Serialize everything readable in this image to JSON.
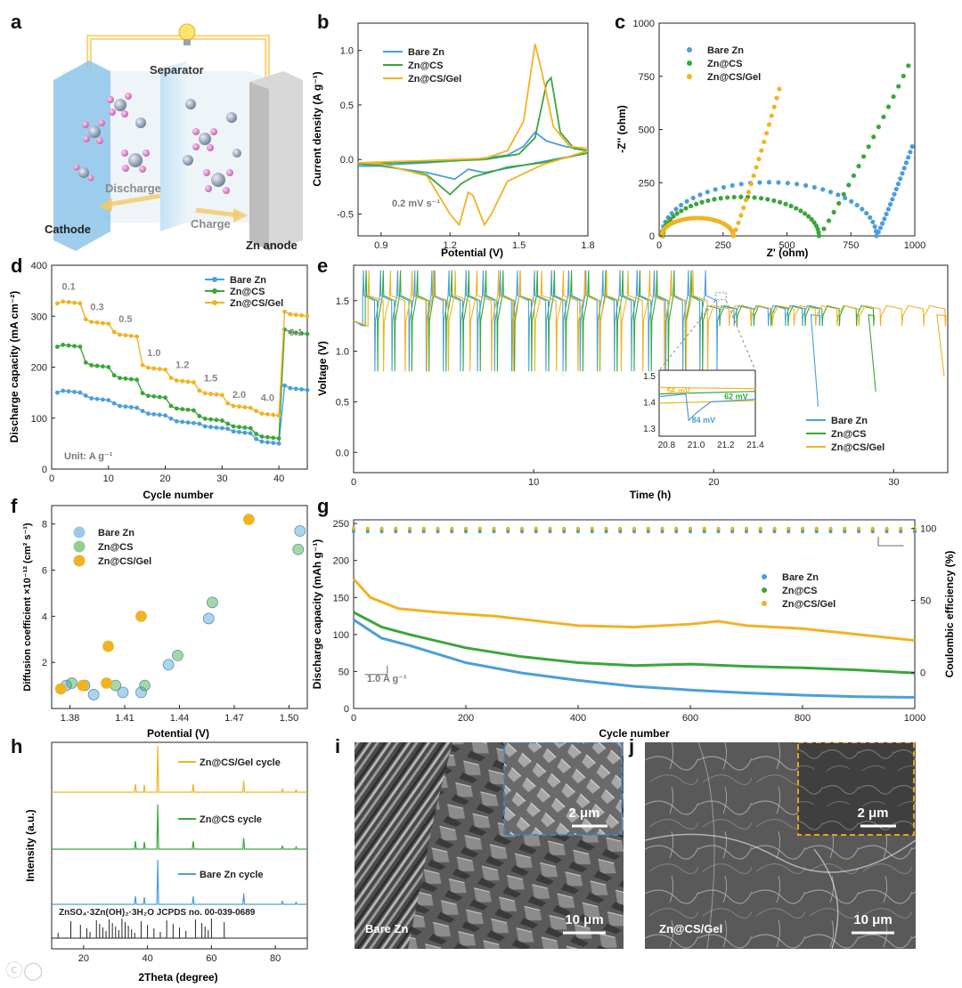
{
  "labels": {
    "a": "a",
    "b": "b",
    "c": "c",
    "d": "d",
    "e": "e",
    "f": "f",
    "g": "g",
    "h": "h",
    "i": "i",
    "j": "j"
  },
  "colors": {
    "bare": "#4a9fd8",
    "cs": "#3aa63a",
    "gel": "#f0b323"
  },
  "panel_a": {
    "separator": "Separator",
    "discharge": "Discharge",
    "charge": "Charge",
    "cathode": "Cathode",
    "anode": "Zn anode"
  },
  "panel_b": {
    "ylabel": "Current density (A g⁻¹)",
    "xlabel": "Potential (V)",
    "note": "0.2 mV s⁻¹",
    "legend": [
      "Bare Zn",
      "Zn@CS",
      "Zn@CS/Gel"
    ],
    "xticks": [
      "0.9",
      "1.2",
      "1.5",
      "1.8"
    ],
    "yticks": [
      "-0.5",
      "0.0",
      "0.5",
      "1.0"
    ]
  },
  "panel_c": {
    "ylabel": "-Z'' (ohm)",
    "xlabel": "Z' (ohm)",
    "legend": [
      "Bare Zn",
      "Zn@CS",
      "Zn@CS/Gel"
    ],
    "xticks": [
      "0",
      "250",
      "500",
      "750",
      "1000"
    ],
    "yticks": [
      "0",
      "250",
      "500",
      "750",
      "1000"
    ]
  },
  "panel_d": {
    "ylabel": "Discharge capacity (mA cm⁻²)",
    "xlabel": "Cycle number",
    "unit": "Unit: A g⁻¹",
    "legend": [
      "Bare Zn",
      "Zn@CS",
      "Zn@CS/Gel"
    ],
    "rates": [
      "0.1",
      "0.3",
      "0.5",
      "1.0",
      "1.2",
      "1.5",
      "2.0",
      "4.0",
      "0.1"
    ],
    "xticks": [
      "0",
      "10",
      "20",
      "30",
      "40"
    ],
    "yticks": [
      "0",
      "100",
      "200",
      "300",
      "400"
    ]
  },
  "panel_e": {
    "ylabel": "Voltage (V)",
    "xlabel": "Time (h)",
    "legend": [
      "Bare Zn",
      "Zn@CS",
      "Zn@CS/Gel"
    ],
    "xticks": [
      "0",
      "10",
      "20",
      "30"
    ],
    "yticks": [
      "0.0",
      "0.5",
      "1.0",
      "1.5"
    ],
    "inset_xticks": [
      "20.8",
      "21.0",
      "21.2",
      "21.4"
    ],
    "inset_yticks": [
      "1.3",
      "1.4",
      "1.5"
    ],
    "inset_notes": [
      "56 mV",
      "62 mV",
      "84 mV"
    ]
  },
  "panel_f": {
    "ylabel": "Diffusion coefficient ×10⁻¹² (cm² s⁻¹)",
    "xlabel": "Potential (V)",
    "legend": [
      "Bare Zn",
      "Zn@CS",
      "Zn@CS/Gel"
    ],
    "xticks": [
      "1.38",
      "1.41",
      "1.44",
      "1.47",
      "1.50"
    ],
    "yticks": [
      "2",
      "4",
      "6",
      "8"
    ]
  },
  "panel_g": {
    "ylabel": "Discharge capacity (mAh g⁻¹)",
    "ylabel2": "Coulombic efficiency (%)",
    "xlabel": "Cycle number",
    "note": "1.0 A g⁻¹",
    "legend": [
      "Bare Zn",
      "Zn@CS",
      "Zn@CS/Gel"
    ],
    "xticks": [
      "0",
      "200",
      "400",
      "600",
      "800",
      "1000"
    ],
    "yticks": [
      "0",
      "50",
      "100",
      "150",
      "200",
      "250"
    ],
    "y2ticks": [
      "0",
      "50",
      "100"
    ]
  },
  "panel_h": {
    "ylabel": "Intensity (a.u.)",
    "xlabel": "2Theta (degree)",
    "traces": [
      "Zn@CS/Gel cycle",
      "Zn@CS cycle",
      "Bare Zn cycle"
    ],
    "reference": "ZnSO₄·3Zn(OH)₂·3H₂O JCPDS no. 00-039-0689",
    "xticks": [
      "20",
      "40",
      "60",
      "80"
    ]
  },
  "panel_i": {
    "label": "Bare Zn",
    "scale": "10 μm",
    "inset_scale": "2 μm"
  },
  "panel_j": {
    "label": "Zn@CS/Gel",
    "scale": "10 μm",
    "inset_scale": "2 μm"
  },
  "chart_data": [
    {
      "panel": "b",
      "type": "line",
      "xlim": [
        0.8,
        1.8
      ],
      "ylim": [
        -0.7,
        1.25
      ],
      "series": [
        {
          "name": "Bare Zn",
          "forward": [
            [
              0.8,
              -0.06
            ],
            [
              1.1,
              -0.03
            ],
            [
              1.3,
              0.0
            ],
            [
              1.45,
              0.04
            ],
            [
              1.52,
              0.12
            ],
            [
              1.57,
              0.25
            ],
            [
              1.62,
              0.17
            ],
            [
              1.7,
              0.12
            ],
            [
              1.8,
              0.08
            ]
          ],
          "reverse": [
            [
              1.8,
              0.06
            ],
            [
              1.6,
              -0.02
            ],
            [
              1.45,
              -0.08
            ],
            [
              1.35,
              -0.12
            ],
            [
              1.28,
              -0.09
            ],
            [
              1.22,
              -0.18
            ],
            [
              1.1,
              -0.12
            ],
            [
              0.9,
              -0.06
            ],
            [
              0.8,
              -0.06
            ]
          ]
        },
        {
          "name": "Zn@CS",
          "forward": [
            [
              0.8,
              -0.04
            ],
            [
              1.1,
              -0.02
            ],
            [
              1.35,
              0.0
            ],
            [
              1.5,
              0.05
            ],
            [
              1.57,
              0.2
            ],
            [
              1.62,
              0.7
            ],
            [
              1.64,
              0.75
            ],
            [
              1.68,
              0.25
            ],
            [
              1.74,
              0.1
            ],
            [
              1.8,
              0.08
            ]
          ],
          "reverse": [
            [
              1.8,
              0.06
            ],
            [
              1.6,
              -0.03
            ],
            [
              1.45,
              -0.07
            ],
            [
              1.37,
              -0.12
            ],
            [
              1.3,
              -0.16
            ],
            [
              1.25,
              -0.22
            ],
            [
              1.2,
              -0.32
            ],
            [
              1.1,
              -0.14
            ],
            [
              0.9,
              -0.05
            ],
            [
              0.8,
              -0.04
            ]
          ]
        },
        {
          "name": "Zn@CS/Gel",
          "forward": [
            [
              0.8,
              -0.03
            ],
            [
              1.1,
              -0.01
            ],
            [
              1.35,
              0.01
            ],
            [
              1.45,
              0.08
            ],
            [
              1.52,
              0.35
            ],
            [
              1.57,
              1.06
            ],
            [
              1.6,
              0.8
            ],
            [
              1.65,
              0.3
            ],
            [
              1.72,
              0.12
            ],
            [
              1.8,
              0.1
            ]
          ],
          "reverse": [
            [
              1.8,
              0.08
            ],
            [
              1.6,
              -0.05
            ],
            [
              1.45,
              -0.2
            ],
            [
              1.38,
              -0.5
            ],
            [
              1.35,
              -0.6
            ],
            [
              1.3,
              -0.33
            ],
            [
              1.28,
              -0.3
            ],
            [
              1.24,
              -0.6
            ],
            [
              1.2,
              -0.5
            ],
            [
              1.1,
              -0.15
            ],
            [
              0.9,
              -0.04
            ],
            [
              0.8,
              -0.03
            ]
          ]
        }
      ]
    },
    {
      "panel": "c",
      "type": "scatter",
      "xlim": [
        0,
        1000
      ],
      "ylim": [
        0,
        1000
      ],
      "series": [
        {
          "name": "Bare Zn",
          "center": 430,
          "radius": 420,
          "end_x": 850,
          "tail_x": 990,
          "tail_y": 420
        },
        {
          "name": "Zn@CS",
          "center": 320,
          "radius": 305,
          "end_x": 630,
          "tail_x": 975,
          "tail_y": 800
        },
        {
          "name": "Zn@CS/Gel",
          "center": 150,
          "radius": 140,
          "end_x": 290,
          "tail_x": 470,
          "tail_y": 690
        }
      ]
    },
    {
      "panel": "d",
      "type": "line",
      "xlim": [
        0,
        45
      ],
      "ylim": [
        0,
        400
      ],
      "steps": {
        "cycles_per_step": 5,
        "final_step_cycles": 5
      },
      "series": [
        {
          "name": "Bare Zn",
          "levels": [
            155,
            140,
            125,
            110,
            95,
            85,
            75,
            55,
            160
          ]
        },
        {
          "name": "Zn@CS",
          "levels": [
            245,
            205,
            180,
            145,
            120,
            100,
            85,
            65,
            270
          ]
        },
        {
          "name": "Zn@CS/Gel",
          "levels": [
            330,
            290,
            265,
            200,
            175,
            150,
            125,
            110,
            305
          ]
        }
      ]
    },
    {
      "panel": "e",
      "type": "line",
      "xlim": [
        0,
        33
      ],
      "ylim": [
        -0.2,
        1.85
      ],
      "series": [
        {
          "name": "Bare Zn",
          "end_time": 25.8
        },
        {
          "name": "Zn@CS",
          "end_time": 29.0
        },
        {
          "name": "Zn@CS/Gel",
          "end_time": 32.8
        }
      ]
    },
    {
      "panel": "f",
      "type": "scatter",
      "xlim": [
        1.37,
        1.51
      ],
      "ylim": [
        0,
        8.8
      ],
      "series": [
        {
          "name": "Bare Zn",
          "points": [
            [
              1.378,
              1.0
            ],
            [
              1.393,
              0.6
            ],
            [
              1.409,
              0.7
            ],
            [
              1.419,
              0.7
            ],
            [
              1.434,
              1.9
            ],
            [
              1.456,
              3.9
            ],
            [
              1.506,
              7.7
            ]
          ]
        },
        {
          "name": "Zn@CS",
          "points": [
            [
              1.381,
              1.1
            ],
            [
              1.388,
              1.0
            ],
            [
              1.405,
              1.0
            ],
            [
              1.421,
              1.0
            ],
            [
              1.439,
              2.3
            ],
            [
              1.458,
              4.6
            ],
            [
              1.505,
              6.9
            ]
          ]
        },
        {
          "name": "Zn@CS/Gel",
          "points": [
            [
              1.375,
              0.85
            ],
            [
              1.387,
              1.0
            ],
            [
              1.4,
              1.1
            ],
            [
              1.401,
              2.7
            ],
            [
              1.419,
              4.0
            ],
            [
              1.478,
              8.2
            ]
          ]
        }
      ]
    },
    {
      "panel": "g",
      "type": "line",
      "xlim": [
        0,
        1000
      ],
      "ylim": [
        0,
        255
      ],
      "y2lim": [
        -25,
        106
      ],
      "series": [
        {
          "name": "Bare Zn",
          "capacity": [
            [
              0,
              120
            ],
            [
              50,
              95
            ],
            [
              100,
              85
            ],
            [
              200,
              62
            ],
            [
              300,
              48
            ],
            [
              400,
              38
            ],
            [
              500,
              30
            ],
            [
              600,
              25
            ],
            [
              700,
              21
            ],
            [
              800,
              18
            ],
            [
              900,
              16
            ],
            [
              1000,
              15
            ]
          ],
          "ce": 99
        },
        {
          "name": "Zn@CS",
          "capacity": [
            [
              0,
              130
            ],
            [
              50,
              110
            ],
            [
              100,
              100
            ],
            [
              200,
              82
            ],
            [
              300,
              70
            ],
            [
              400,
              62
            ],
            [
              500,
              58
            ],
            [
              600,
              60
            ],
            [
              700,
              57
            ],
            [
              800,
              55
            ],
            [
              900,
              52
            ],
            [
              1000,
              48
            ]
          ],
          "ce": 99.5
        },
        {
          "name": "Zn@CS/Gel",
          "capacity": [
            [
              0,
              175
            ],
            [
              30,
              150
            ],
            [
              80,
              135
            ],
            [
              150,
              130
            ],
            [
              250,
              125
            ],
            [
              400,
              112
            ],
            [
              500,
              110
            ],
            [
              600,
              114
            ],
            [
              650,
              118
            ],
            [
              700,
              112
            ],
            [
              800,
              108
            ],
            [
              900,
              100
            ],
            [
              1000,
              92
            ]
          ],
          "ce": 100
        }
      ]
    },
    {
      "panel": "h",
      "type": "line",
      "xlim": [
        10,
        90
      ],
      "peaks": [
        36.2,
        39.0,
        43.2,
        54.3,
        70.1,
        82.2,
        86.5
      ],
      "peak_heights": [
        0.18,
        0.16,
        1.0,
        0.18,
        0.25,
        0.08,
        0.05
      ],
      "reference_peaks": [
        12,
        16,
        19,
        21,
        22,
        24,
        25,
        26,
        27,
        28,
        29,
        30,
        31,
        32,
        33,
        34,
        35,
        36,
        38,
        40,
        42,
        44,
        46,
        48,
        50,
        52,
        55,
        57,
        58,
        59,
        60,
        64
      ]
    }
  ]
}
